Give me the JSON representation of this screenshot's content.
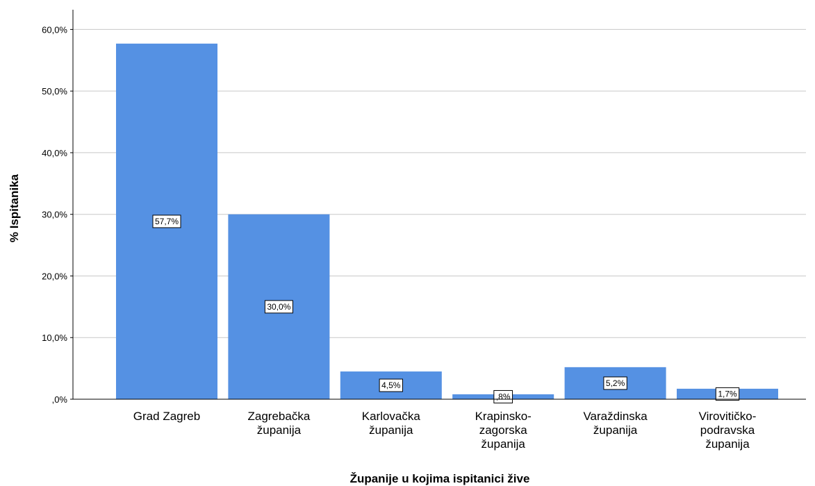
{
  "chart_data": {
    "type": "bar",
    "xlabel": "Županije u kojima ispitanici žive",
    "ylabel": "% Ispitanika",
    "categories": [
      "Grad Zagreb",
      "Zagrebačka\nžupanija",
      "Karlovačka\nžupanija",
      "Krapinsko-\nzagorska\nžupanija",
      "Varaždinska\nžupanija",
      "Virovitičko-\npodravska\nžupanija"
    ],
    "values": [
      57.7,
      30.0,
      4.5,
      0.8,
      5.2,
      1.7
    ],
    "value_labels": [
      "57,7%",
      "30,0%",
      "4,5%",
      ",8%",
      "5,2%",
      "1,7%"
    ],
    "color": "#5591e3",
    "ylim": [
      0,
      63.2
    ],
    "yticks": [
      {
        "value": 0,
        "label": ",0%"
      },
      {
        "value": 10,
        "label": "10,0%"
      },
      {
        "value": 20,
        "label": "20,0%"
      },
      {
        "value": 30,
        "label": "30,0%"
      },
      {
        "value": 40,
        "label": "40,0%"
      },
      {
        "value": 50,
        "label": "50,0%"
      },
      {
        "value": 60,
        "label": "60,0%"
      }
    ],
    "grid": true
  }
}
